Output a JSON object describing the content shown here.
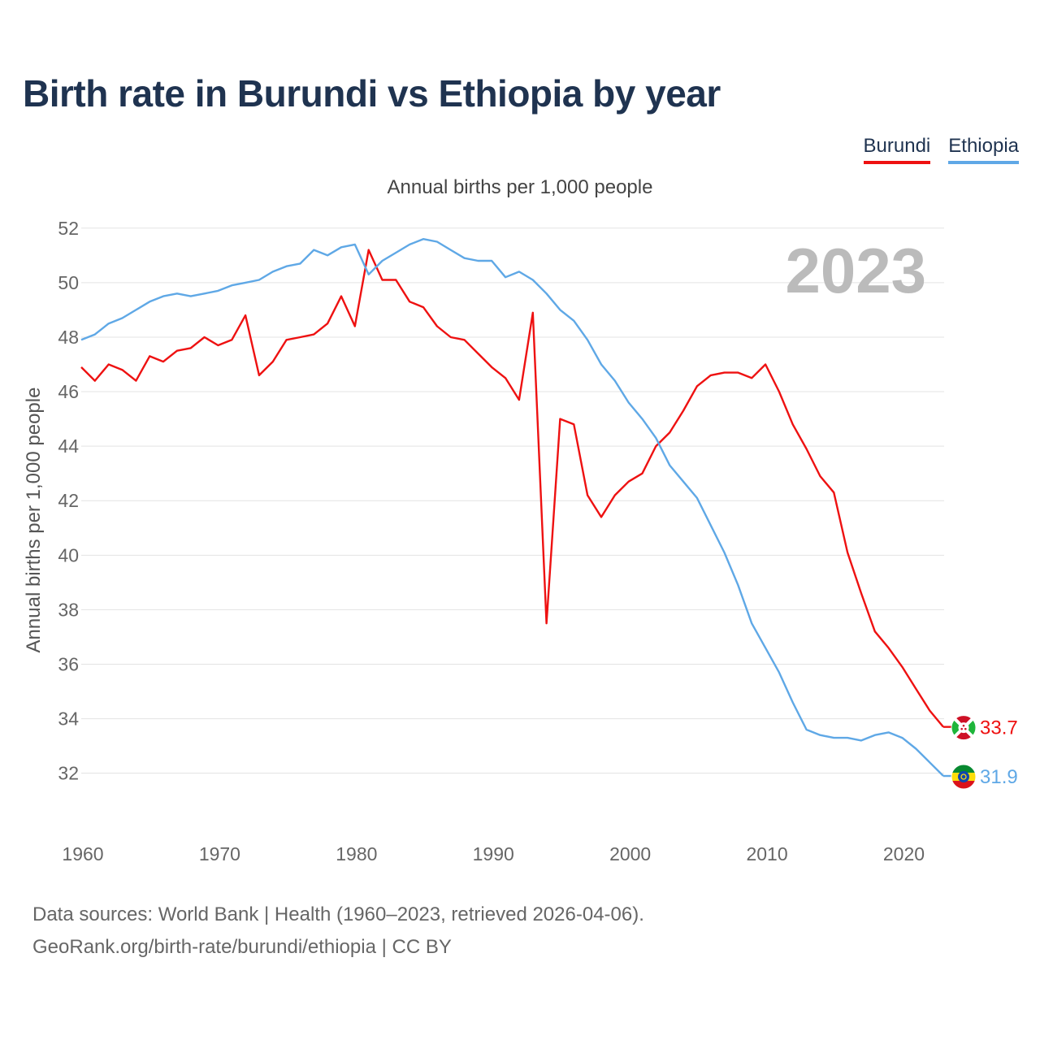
{
  "title": "Birth rate in Burundi vs Ethiopia by year",
  "subtitle": "Annual births per 1,000 people",
  "footer": {
    "line1": "Data sources: World Bank | Health (1960–2023, retrieved 2026-04-06).",
    "line2": "GeoRank.org/birth-rate/burundi/ethiopia | CC BY"
  },
  "colors": {
    "burundi": "#ee1111",
    "ethiopia": "#5fa8e6",
    "title": "#1f3350"
  },
  "chart_data": {
    "type": "line",
    "title": "Birth rate in Burundi vs Ethiopia by year",
    "subtitle": "Annual births per 1,000 people",
    "ylabel": "Annual births per 1,000 people",
    "xlabel": "",
    "current_year_label": "2023",
    "xlim": [
      1960,
      2023
    ],
    "ylim": [
      30.5,
      52.5
    ],
    "x_ticks": [
      1960,
      1970,
      1980,
      1990,
      2000,
      2010,
      2020
    ],
    "y_ticks": [
      32,
      34,
      36,
      38,
      40,
      42,
      44,
      46,
      48,
      50,
      52
    ],
    "grid": true,
    "legend_position": "top-right",
    "x": [
      1960,
      1961,
      1962,
      1963,
      1964,
      1965,
      1966,
      1967,
      1968,
      1969,
      1970,
      1971,
      1972,
      1973,
      1974,
      1975,
      1976,
      1977,
      1978,
      1979,
      1980,
      1981,
      1982,
      1983,
      1984,
      1985,
      1986,
      1987,
      1988,
      1989,
      1990,
      1991,
      1992,
      1993,
      1994,
      1995,
      1996,
      1997,
      1998,
      1999,
      2000,
      2001,
      2002,
      2003,
      2004,
      2005,
      2006,
      2007,
      2008,
      2009,
      2010,
      2011,
      2012,
      2013,
      2014,
      2015,
      2016,
      2017,
      2018,
      2019,
      2020,
      2021,
      2022,
      2023
    ],
    "series": [
      {
        "name": "Burundi",
        "color": "#ee1111",
        "end_label": "33.7",
        "flag": "burundi",
        "values": [
          46.9,
          46.4,
          47.0,
          46.8,
          46.4,
          47.3,
          47.1,
          47.5,
          47.6,
          48.0,
          47.7,
          47.9,
          48.8,
          46.6,
          47.1,
          47.9,
          48.0,
          48.1,
          48.5,
          49.5,
          48.4,
          51.2,
          50.1,
          50.1,
          49.3,
          49.1,
          48.4,
          48.0,
          47.9,
          47.4,
          46.9,
          46.5,
          45.7,
          48.9,
          37.5,
          45.0,
          44.8,
          42.2,
          41.4,
          42.2,
          42.7,
          43.0,
          44.0,
          44.5,
          45.3,
          46.2,
          46.6,
          46.7,
          46.7,
          46.5,
          47.0,
          46.0,
          44.8,
          43.9,
          42.9,
          42.3,
          40.1,
          38.6,
          37.2,
          36.6,
          35.9,
          35.1,
          34.3,
          33.7
        ]
      },
      {
        "name": "Ethiopia",
        "color": "#5fa8e6",
        "end_label": "31.9",
        "flag": "ethiopia",
        "values": [
          47.9,
          48.1,
          48.5,
          48.7,
          49.0,
          49.3,
          49.5,
          49.6,
          49.5,
          49.6,
          49.7,
          49.9,
          50.0,
          50.1,
          50.4,
          50.6,
          50.7,
          51.2,
          51.0,
          51.3,
          51.4,
          50.3,
          50.8,
          51.1,
          51.4,
          51.6,
          51.5,
          51.2,
          50.9,
          50.8,
          50.8,
          50.2,
          50.4,
          50.1,
          49.6,
          49.0,
          48.6,
          47.9,
          47.0,
          46.4,
          45.6,
          45.0,
          44.3,
          43.3,
          42.7,
          42.1,
          41.1,
          40.1,
          38.9,
          37.5,
          36.6,
          35.7,
          34.6,
          33.6,
          33.4,
          33.3,
          33.3,
          33.2,
          33.4,
          33.5,
          33.3,
          32.9,
          32.4,
          31.9
        ]
      }
    ]
  }
}
